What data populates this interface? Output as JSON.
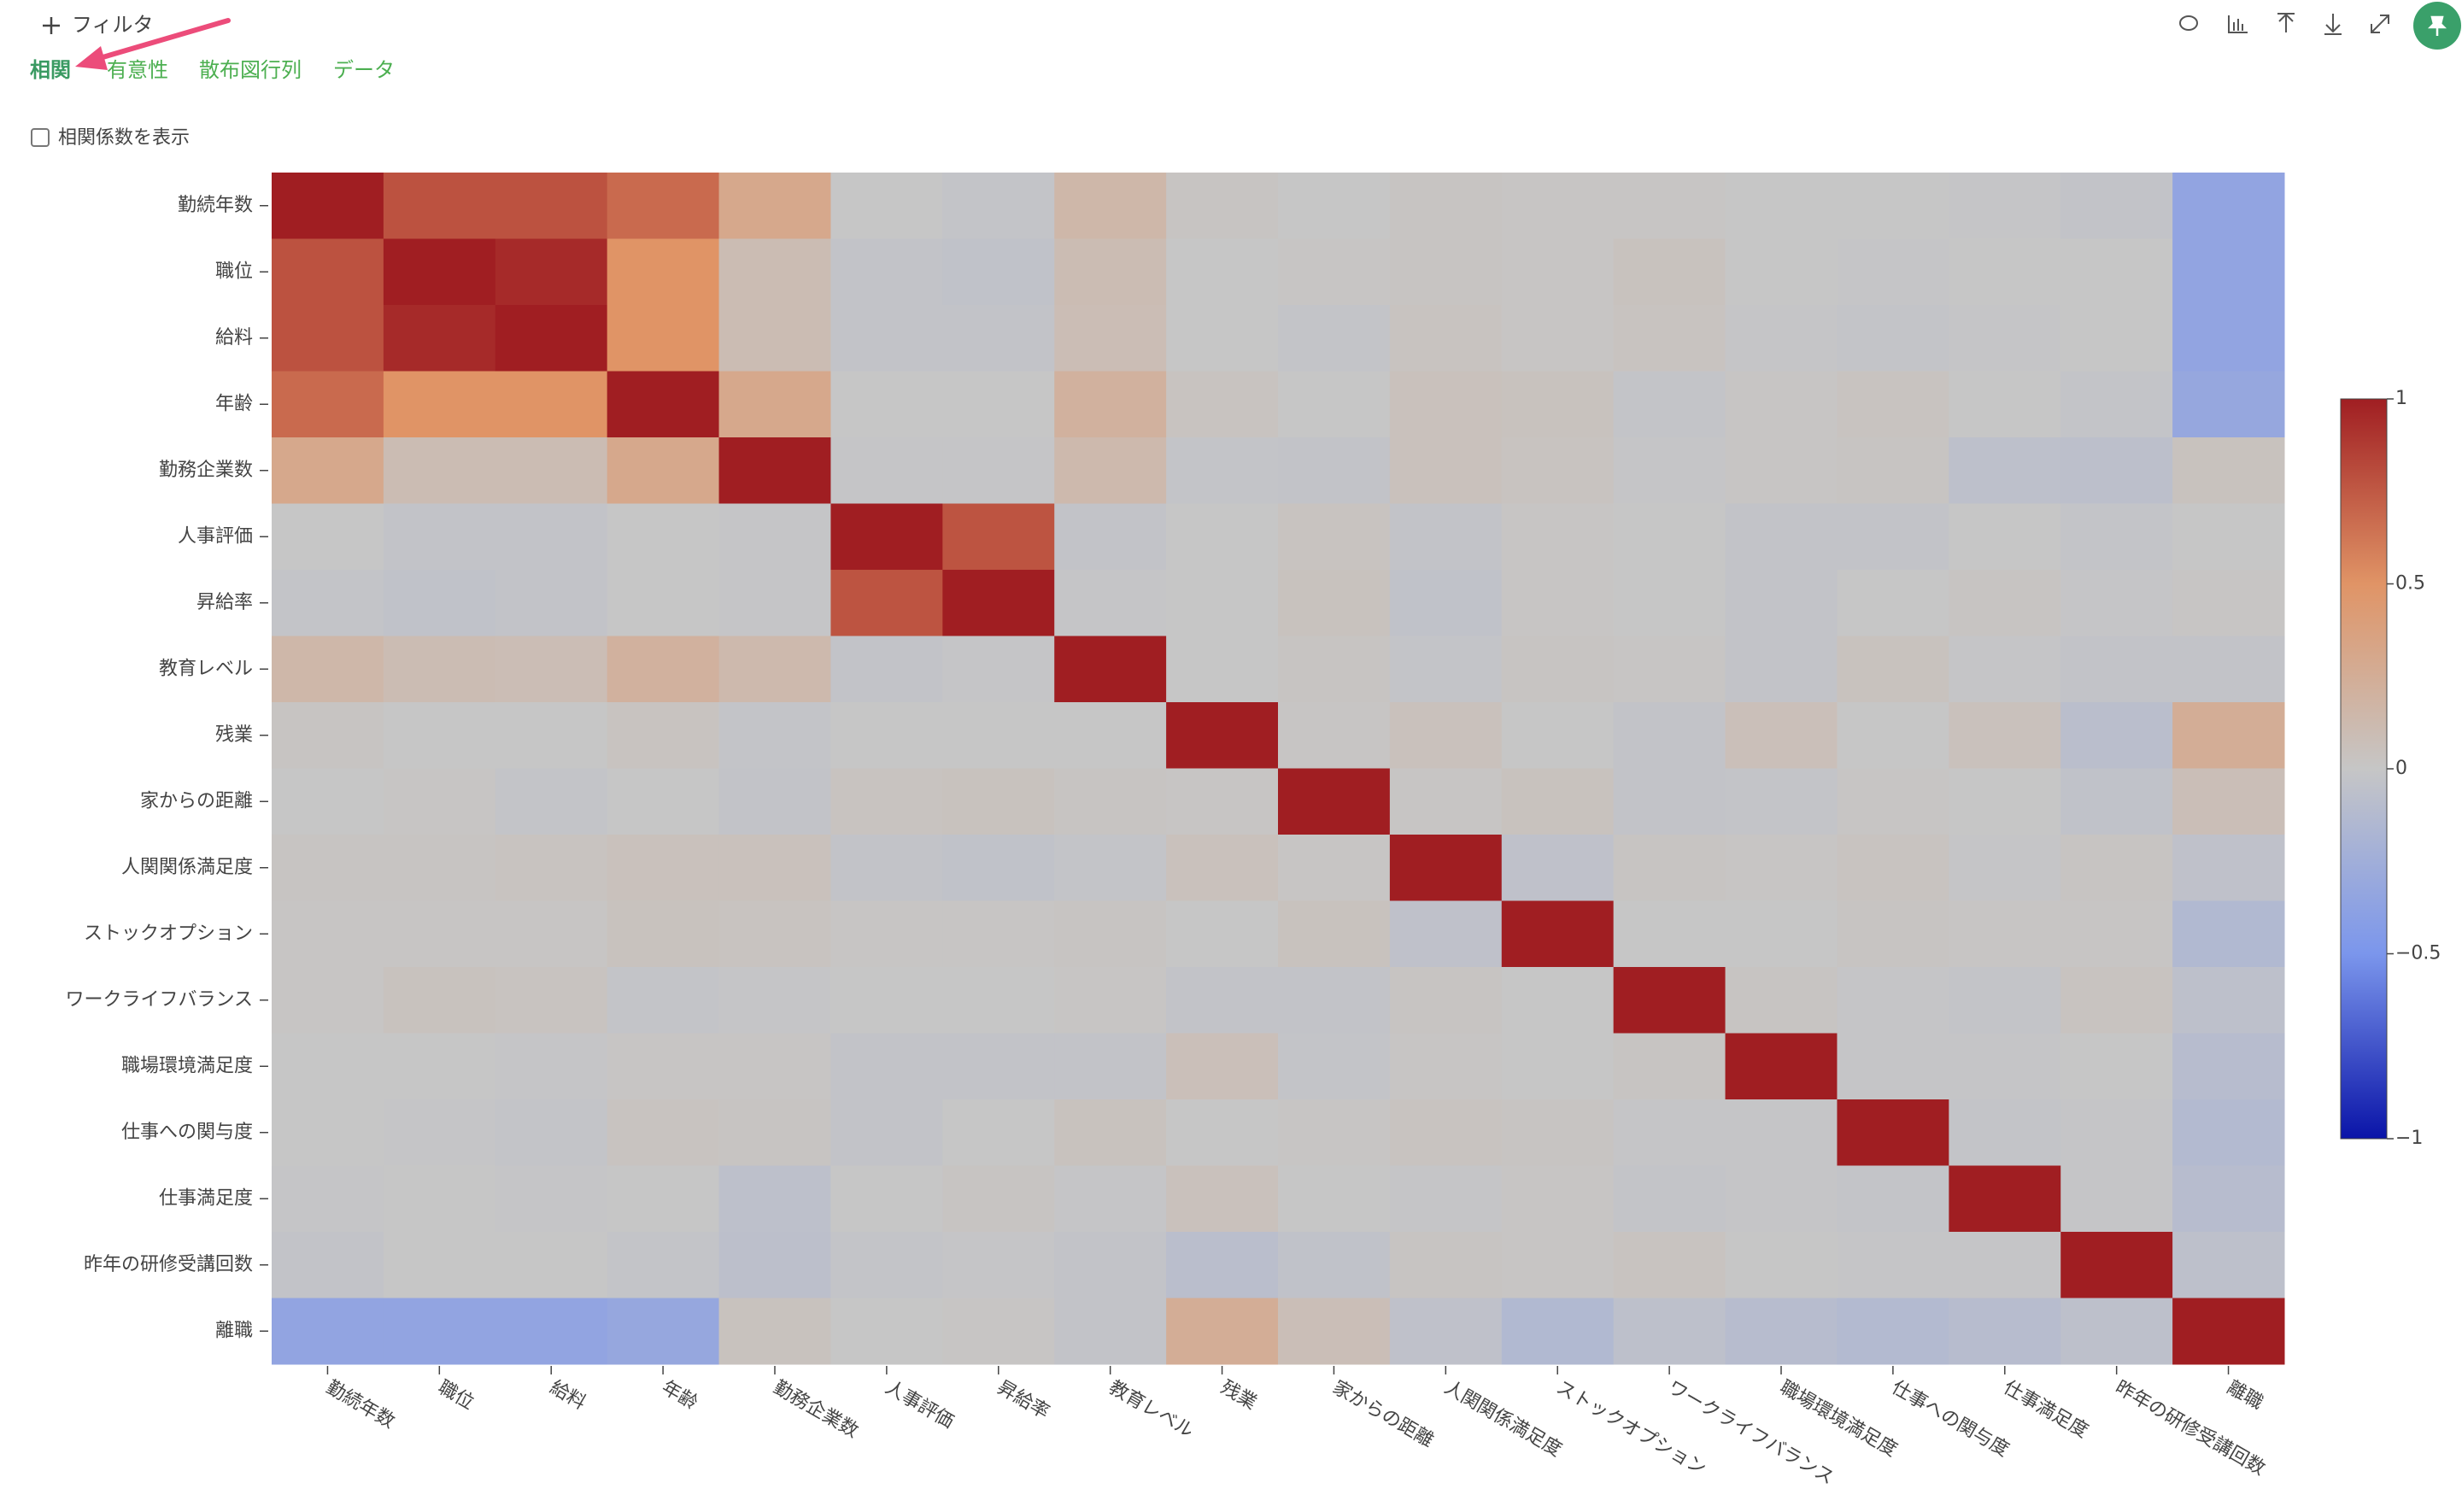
{
  "ui": {
    "filter": "フィルタ",
    "tabs": [
      "相関",
      "有意性",
      "散布図行列",
      "データ"
    ],
    "checkbox": "相関係数を表示"
  },
  "chart_data": {
    "type": "heatmap",
    "x": [
      "勤続年数",
      "職位",
      "給料",
      "年齢",
      "勤務企業数",
      "人事評価",
      "昇給率",
      "教育レベル",
      "残業",
      "家からの距離",
      "人関関係満足度",
      "ストックオプション",
      "ワークライフバランス",
      "職場環境満足度",
      "仕事への関与度",
      "仕事満足度",
      "昨年の研修受講回数",
      "離職"
    ],
    "y": [
      "勤続年数",
      "職位",
      "給料",
      "年齢",
      "勤務企業数",
      "人事評価",
      "昇給率",
      "教育レベル",
      "残業",
      "家からの距離",
      "人関関係満足度",
      "ストックオプション",
      "ワークライフバランス",
      "職場環境満足度",
      "仕事への関与度",
      "仕事満足度",
      "昨年の研修受講回数",
      "離職"
    ],
    "z": [
      [
        1,
        0.78,
        0.78,
        0.68,
        0.3,
        0,
        -0.02,
        0.15,
        0.02,
        0,
        0.02,
        0.01,
        0.01,
        0,
        0,
        -0.01,
        -0.03,
        -0.35
      ],
      [
        0.78,
        1,
        0.95,
        0.5,
        0.1,
        -0.03,
        -0.04,
        0.1,
        0,
        0.01,
        0.02,
        0.01,
        0.04,
        0,
        -0.01,
        0,
        0,
        -0.35
      ],
      [
        0.78,
        0.95,
        1,
        0.5,
        0.1,
        -0.03,
        -0.03,
        0.09,
        0,
        -0.02,
        0.03,
        0.01,
        0.03,
        -0.01,
        -0.02,
        -0.01,
        0,
        -0.35
      ],
      [
        0.68,
        0.5,
        0.5,
        1,
        0.3,
        0,
        0,
        0.21,
        0.03,
        0,
        0.05,
        0.04,
        -0.02,
        0.01,
        0.03,
        0,
        -0.02,
        -0.32
      ],
      [
        0.3,
        0.1,
        0.1,
        0.3,
        1,
        -0.01,
        -0.01,
        0.13,
        -0.02,
        -0.03,
        0.05,
        0.03,
        -0.01,
        0.01,
        0.02,
        -0.06,
        -0.07,
        0.04
      ],
      [
        0,
        -0.03,
        -0.03,
        0,
        -0.01,
        1,
        0.77,
        -0.03,
        0,
        0.03,
        -0.03,
        0.01,
        0,
        -0.03,
        -0.03,
        0,
        -0.02,
        0
      ],
      [
        -0.02,
        -0.04,
        -0.03,
        0,
        -0.01,
        0.77,
        1,
        -0.01,
        0,
        0.04,
        -0.04,
        0.01,
        0,
        -0.03,
        0,
        0.02,
        -0.01,
        0.01
      ],
      [
        0.15,
        0.1,
        0.09,
        0.21,
        0.13,
        -0.03,
        -0.01,
        1,
        0,
        0.02,
        -0.02,
        0.02,
        0.01,
        -0.03,
        0.04,
        -0.01,
        -0.03,
        -0.03
      ],
      [
        0.02,
        0,
        0,
        0.03,
        -0.02,
        0,
        0,
        0,
        1,
        0.01,
        0.05,
        0,
        -0.03,
        0.07,
        0,
        0.05,
        -0.08,
        0.25
      ],
      [
        0,
        0.01,
        -0.02,
        0,
        -0.03,
        0.03,
        0.04,
        0.02,
        0.01,
        1,
        0.01,
        0.04,
        -0.03,
        -0.02,
        0.01,
        0,
        -0.04,
        0.08
      ],
      [
        0.02,
        0.02,
        0.03,
        0.05,
        0.05,
        -0.03,
        -0.04,
        -0.02,
        0.05,
        0.01,
        1,
        -0.05,
        0.02,
        0.01,
        0.03,
        -0.01,
        0.02,
        -0.05
      ],
      [
        0.01,
        0.01,
        0.01,
        0.04,
        0.03,
        0.01,
        0.01,
        0.02,
        0,
        0.04,
        -0.05,
        1,
        0,
        0,
        0.02,
        0.01,
        0.01,
        -0.14
      ],
      [
        0.01,
        0.04,
        0.03,
        -0.02,
        -0.01,
        0,
        0,
        0.01,
        -0.03,
        -0.03,
        0.02,
        0,
        1,
        0.02,
        -0.01,
        -0.02,
        0.03,
        -0.06
      ],
      [
        0,
        0,
        -0.01,
        0.01,
        0.01,
        -0.03,
        -0.03,
        -0.03,
        0.07,
        -0.02,
        0.01,
        0,
        0.02,
        1,
        -0.01,
        -0.01,
        0,
        -0.1
      ],
      [
        0,
        -0.01,
        -0.02,
        0.03,
        0.02,
        -0.03,
        0,
        0.04,
        0,
        0.01,
        0.03,
        0.02,
        -0.01,
        -0.01,
        1,
        -0.02,
        -0.01,
        -0.13
      ],
      [
        -0.01,
        0,
        -0.01,
        0,
        -0.06,
        0,
        0.02,
        -0.01,
        0.05,
        0,
        -0.01,
        0.01,
        -0.02,
        -0.01,
        -0.02,
        1,
        -0.01,
        -0.1
      ],
      [
        -0.03,
        0,
        0,
        -0.02,
        -0.07,
        -0.02,
        -0.01,
        -0.03,
        -0.08,
        -0.04,
        0.02,
        0.01,
        0.03,
        0,
        -0.01,
        -0.01,
        1,
        -0.06
      ],
      [
        -0.35,
        -0.35,
        -0.35,
        -0.32,
        0.04,
        0,
        0.01,
        -0.03,
        0.25,
        0.08,
        -0.05,
        -0.14,
        -0.06,
        -0.1,
        -0.13,
        -0.1,
        -0.06,
        1
      ]
    ],
    "zlim": [
      -1,
      1
    ],
    "colorscale": [
      [
        -1,
        "#0a14a8"
      ],
      [
        -0.5,
        "#7b96ec"
      ],
      [
        0,
        "#c6c6c6"
      ],
      [
        0.5,
        "#e09466"
      ],
      [
        1,
        "#a01e22"
      ]
    ],
    "colorbar_ticks": [
      1,
      0.5,
      0,
      {
        "value": -0.5,
        "label": "−0.5"
      },
      {
        "value": -1,
        "label": "−1"
      }
    ]
  }
}
